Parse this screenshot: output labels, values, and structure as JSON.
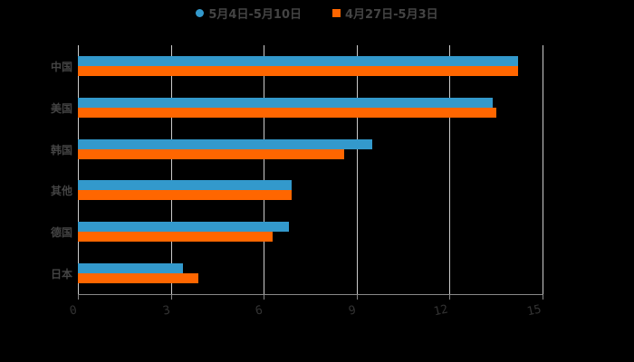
{
  "legend": [
    {
      "label": "5月4日-5月10日",
      "color": "#3399cc",
      "shape": "circle"
    },
    {
      "label": "4月27日-5月3日",
      "color": "#ff6600",
      "shape": "square"
    }
  ],
  "axis": {
    "ticks": [
      "0",
      "3",
      "6",
      "9",
      "12",
      "15"
    ]
  },
  "categories": [
    "中国",
    "美国",
    "韩国",
    "其他",
    "德国",
    "日本"
  ],
  "chart_data": {
    "type": "bar",
    "orientation": "horizontal",
    "title": "",
    "xlabel": "",
    "ylabel": "",
    "categories": [
      "中国",
      "美国",
      "韩国",
      "其他",
      "德国",
      "日本"
    ],
    "series": [
      {
        "name": "5月4日-5月10日",
        "color": "#3399cc",
        "values": [
          14.2,
          13.4,
          9.5,
          6.9,
          6.8,
          3.4
        ]
      },
      {
        "name": "4月27日-5月3日",
        "color": "#ff6600",
        "values": [
          14.2,
          13.5,
          8.6,
          6.9,
          6.3,
          3.9
        ]
      }
    ],
    "xlim": [
      0,
      15
    ],
    "xticks": [
      0,
      3,
      6,
      9,
      12,
      15
    ],
    "grid": true,
    "legend_position": "top"
  }
}
